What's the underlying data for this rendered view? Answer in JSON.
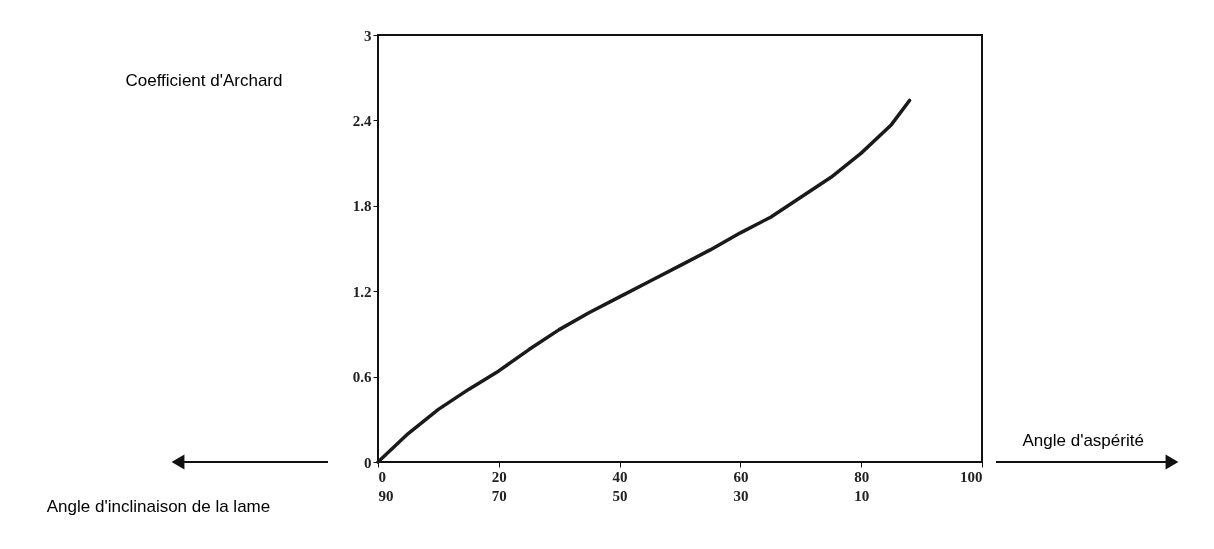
{
  "chart_data": {
    "type": "line",
    "xlabel": "Angle d'aspérité",
    "ylabel": "Coefficient d'Archard",
    "x2label": "Angle d'inclinaison de la lame",
    "x": [
      0,
      5,
      10,
      15,
      20,
      25,
      30,
      35,
      40,
      45,
      50,
      55,
      60,
      65,
      70,
      75,
      80,
      85,
      88
    ],
    "series": [
      {
        "color": "#1a1a1a",
        "values": [
          0,
          0.2,
          0.37,
          0.51,
          0.64,
          0.79,
          0.93,
          1.05,
          1.16,
          1.27,
          1.38,
          1.49,
          1.61,
          1.72,
          1.86,
          2.0,
          2.17,
          2.37,
          2.54
        ]
      }
    ],
    "xlim": [
      0,
      100
    ],
    "xticks": [
      0,
      20,
      40,
      60,
      80,
      100
    ],
    "x2lim": [
      90,
      -10
    ],
    "x2ticks": [
      90,
      70,
      50,
      30,
      10
    ],
    "ylim": [
      0,
      3
    ],
    "yticks": [
      0,
      0.6,
      1.2,
      1.8,
      2.4,
      3
    ],
    "grid": false,
    "marker": "none",
    "line_style": "solid"
  }
}
